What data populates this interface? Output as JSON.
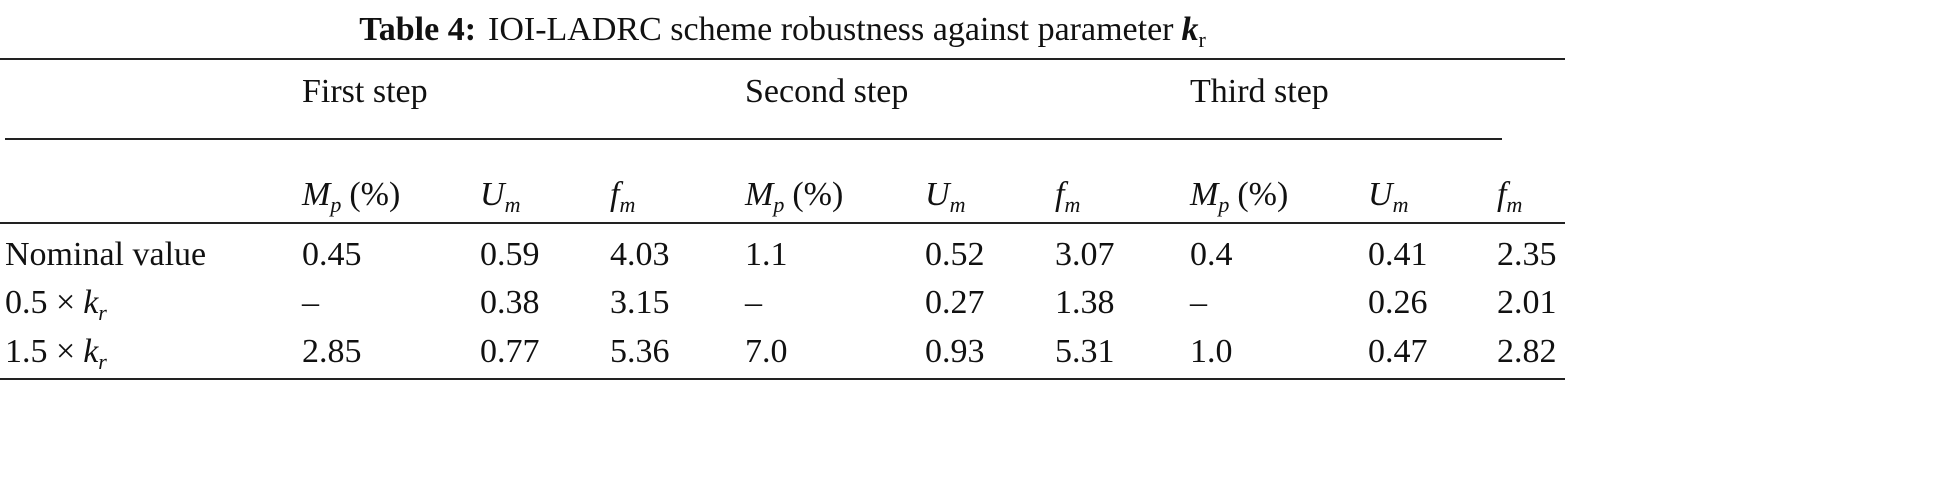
{
  "title": {
    "label": "Table 4:",
    "text": "IOI-LADRC scheme robustness against parameter",
    "symbol": "k",
    "symbol_sub": "r"
  },
  "table": {
    "groups": [
      "First step",
      "Second step",
      "Third step"
    ],
    "columns": [
      {
        "symbol": "M",
        "sub": "p",
        "unit": "(%)"
      },
      {
        "symbol": "U",
        "sub": "m"
      },
      {
        "symbol": "f",
        "sub": "m"
      },
      {
        "symbol": "M",
        "sub": "p",
        "unit": "(%)"
      },
      {
        "symbol": "U",
        "sub": "m"
      },
      {
        "symbol": "f",
        "sub": "m"
      },
      {
        "symbol": "M",
        "sub": "p",
        "unit": "(%)"
      },
      {
        "symbol": "U",
        "sub": "m"
      },
      {
        "symbol": "f",
        "sub": "m"
      }
    ],
    "rows": [
      {
        "label": "Nominal value",
        "cells": [
          "0.45",
          "0.59",
          "4.03",
          "1.1",
          "0.52",
          "3.07",
          "0.4",
          "0.41",
          "2.35"
        ]
      },
      {
        "label": {
          "text": "0.5 ×",
          "symbol": "k",
          "sub": "r"
        },
        "cells": [
          "–",
          "0.38",
          "3.15",
          "–",
          "0.27",
          "1.38",
          "–",
          "0.26",
          "2.01"
        ]
      },
      {
        "label": {
          "text": "1.5 ×",
          "symbol": "k",
          "sub": "r"
        },
        "cells": [
          "2.85",
          "0.77",
          "5.36",
          "7.0",
          "0.93",
          "5.31",
          "1.0",
          "0.47",
          "2.82"
        ]
      }
    ]
  }
}
